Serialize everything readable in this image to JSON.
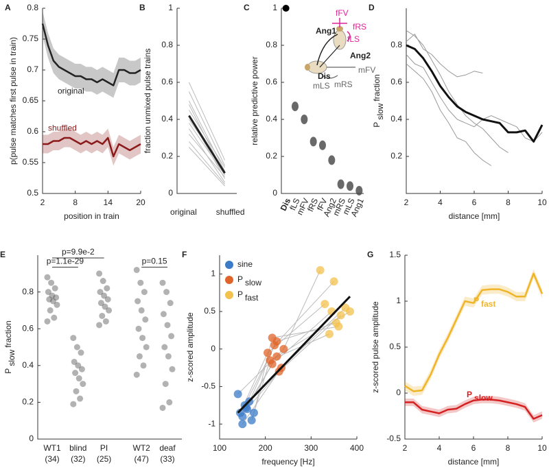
{
  "chart_data": [
    {
      "type": "line",
      "panel": "A",
      "xlabel": "position in train",
      "ylabel": "p(pulse matches first pulse in train)",
      "x": [
        2,
        3,
        4,
        5,
        6,
        7,
        8,
        9,
        10,
        11,
        12,
        13,
        14,
        15,
        16,
        17,
        18,
        19,
        20
      ],
      "xlim": [
        2,
        20
      ],
      "xticks": [
        2,
        8,
        14,
        20
      ],
      "ylim": [
        0.5,
        0.8
      ],
      "yticks": [
        0.5,
        0.55,
        0.6,
        0.65,
        0.7,
        0.75,
        0.8
      ],
      "series": [
        {
          "name": "original",
          "color": "#222222",
          "line_width": 2.5,
          "err": 0.02,
          "values": [
            0.775,
            0.74,
            0.715,
            0.705,
            0.7,
            0.695,
            0.69,
            0.69,
            0.685,
            0.685,
            0.68,
            0.685,
            0.68,
            0.675,
            0.7,
            0.7,
            0.695,
            0.695,
            0.7
          ]
        },
        {
          "name": "shuffled",
          "color": "#8b1a1a",
          "line_width": 2.5,
          "err": 0.015,
          "values": [
            0.58,
            0.58,
            0.585,
            0.585,
            0.59,
            0.59,
            0.585,
            0.58,
            0.585,
            0.58,
            0.585,
            0.58,
            0.59,
            0.56,
            0.58,
            0.575,
            0.57,
            0.575,
            0.58
          ]
        }
      ]
    },
    {
      "type": "paired",
      "panel": "B",
      "ylabel": "fraction unmixed pulse trains",
      "categories": [
        "original",
        "shuffled"
      ],
      "ylim": [
        0,
        1
      ],
      "yticks": [
        0,
        0.2,
        0.4,
        0.6,
        0.8,
        1
      ],
      "line_color": "#bbbbbb",
      "mean_color": "#222222",
      "lines": [
        [
          0.55,
          0.15
        ],
        [
          0.5,
          0.12
        ],
        [
          0.48,
          0.1
        ],
        [
          0.45,
          0.14
        ],
        [
          0.42,
          0.08
        ],
        [
          0.4,
          0.12
        ],
        [
          0.38,
          0.1
        ],
        [
          0.35,
          0.06
        ],
        [
          0.32,
          0.09
        ],
        [
          0.28,
          0.05
        ],
        [
          0.6,
          0.18
        ],
        [
          0.25,
          0.04
        ]
      ],
      "mean": [
        0.42,
        0.11
      ]
    },
    {
      "type": "dot",
      "panel": "C",
      "ylabel": "relative predictive power",
      "categories": [
        "Dis",
        "fLS",
        "mFV",
        "fRS",
        "fFV",
        "Ang2",
        "mRS",
        "mLS",
        "Ang1"
      ],
      "values": [
        1,
        0.47,
        0.4,
        0.28,
        0.26,
        0.18,
        0.05,
        0.04,
        0.015
      ],
      "ylim": [
        0,
        1
      ],
      "yticks": [
        0,
        0.2,
        0.4,
        0.6,
        0.8,
        1
      ],
      "color": "#444444",
      "first_color": "#000000",
      "inset_labels": [
        "fFV",
        "fRS",
        "fLS",
        "Ang1",
        "Ang2",
        "Dis",
        "mFV",
        "mLS",
        "mRS"
      ]
    },
    {
      "type": "line",
      "panel": "D",
      "xlabel": "distance [mm]",
      "ylabel": "P",
      "ylabel_sub": "slow",
      "ylabel_rest": "fraction",
      "x": [
        2,
        2.5,
        3,
        3.5,
        4,
        4.5,
        5,
        5.5,
        6,
        6.5,
        7,
        7.5,
        8,
        8.5,
        9,
        9.5,
        10
      ],
      "xlim": [
        2,
        10
      ],
      "xticks": [
        2,
        4,
        6,
        8,
        10
      ],
      "ylim": [
        0,
        1
      ],
      "yticks": [
        0.2,
        0.4,
        0.6,
        0.8
      ],
      "series": [
        {
          "color": "#999999",
          "line_width": 1,
          "values": [
            0.88,
            0.85,
            0.8,
            0.72,
            0.64,
            0.55,
            0.48,
            0.42,
            0.38,
            0.35,
            0.3,
            0.25,
            0.22,
            null,
            null,
            null,
            null
          ]
        },
        {
          "color": "#999999",
          "line_width": 1,
          "values": [
            0.82,
            0.86,
            0.78,
            0.75,
            0.7,
            0.66,
            0.63,
            0.64,
            0.66,
            0.65,
            null,
            null,
            null,
            null,
            null,
            null,
            null
          ]
        },
        {
          "color": "#999999",
          "line_width": 1,
          "values": [
            0.75,
            0.7,
            0.68,
            0.6,
            0.52,
            0.45,
            0.4,
            0.38,
            0.36,
            0.4,
            0.42,
            0.4,
            0.38,
            0.36,
            0.3,
            0.28,
            0.33
          ]
        },
        {
          "color": "#999999",
          "line_width": 1,
          "values": [
            0.7,
            0.66,
            0.62,
            0.55,
            0.45,
            0.38,
            0.3,
            0.28,
            0.22,
            0.18,
            0.15,
            null,
            null,
            null,
            null,
            null,
            null
          ]
        },
        {
          "color": "#111111",
          "line_width": 3,
          "values": [
            0.8,
            0.78,
            0.73,
            0.66,
            0.58,
            0.52,
            0.47,
            0.44,
            0.42,
            0.4,
            0.39,
            0.38,
            0.33,
            0.33,
            0.34,
            0.28,
            0.37
          ]
        }
      ]
    },
    {
      "type": "strip",
      "panel": "E",
      "ylabel": "P",
      "ylabel_sub": "slow",
      "ylabel_rest": "fraction",
      "categories": [
        "WT1",
        "blind",
        "PI",
        "WT2",
        "deaf"
      ],
      "n_labels": [
        "(34)",
        "(32)",
        "(25)",
        "(47)",
        "(33)"
      ],
      "annotations": [
        "p=1.1e-29",
        "p=9.9e-2",
        "p=0.15"
      ],
      "color": "#555555",
      "ylim": [
        0,
        1
      ],
      "yticks": [
        0,
        0.2,
        0.4,
        0.6,
        0.8
      ],
      "values": [
        [
          0.88,
          0.85,
          0.82,
          0.8,
          0.78,
          0.77,
          0.76,
          0.75,
          0.73,
          0.7,
          0.66,
          0.64
        ],
        [
          0.55,
          0.5,
          0.47,
          0.42,
          0.4,
          0.38,
          0.36,
          0.33,
          0.3,
          0.26,
          0.22,
          0.19
        ],
        [
          0.9,
          0.86,
          0.82,
          0.8,
          0.78,
          0.76,
          0.74,
          0.72,
          0.7,
          0.67,
          0.64,
          0.62
        ],
        [
          0.92,
          0.85,
          0.8,
          0.75,
          0.7,
          0.65,
          0.6,
          0.55,
          0.5,
          0.45,
          0.4,
          0.35
        ],
        [
          0.85,
          0.8,
          0.74,
          0.68,
          0.62,
          0.56,
          0.5,
          0.45,
          0.38,
          0.3,
          0.2,
          0.17
        ]
      ]
    },
    {
      "type": "scatter",
      "panel": "F",
      "xlabel": "frequency [Hz]",
      "ylabel": "z-scored amplitude",
      "xlim": [
        100,
        400
      ],
      "xticks": [
        100,
        200,
        300,
        400
      ],
      "ylim": [
        -1.2,
        1.25
      ],
      "yticks": [
        -1,
        -0.5,
        0,
        0.5,
        1
      ],
      "series": [
        {
          "name": "sine",
          "color": "#3b7bc8",
          "x": [
            145,
            150,
            155,
            160,
            165,
            170,
            150,
            140,
            175,
            158
          ],
          "values": [
            -0.85,
            -0.9,
            -0.75,
            -0.8,
            -0.7,
            -0.95,
            -1.0,
            -0.6,
            -0.85,
            -0.78
          ]
        },
        {
          "name": "P",
          "name_sub": "slow",
          "color": "#e0642a",
          "x": [
            205,
            215,
            225,
            230,
            220,
            210,
            235,
            240,
            215,
            225
          ],
          "values": [
            -0.05,
            -0.2,
            0.1,
            -0.3,
            0.05,
            -0.15,
            -0.25,
            0,
            0.15,
            -0.1
          ]
        },
        {
          "name": "P",
          "name_sub": "fast",
          "color": "#f3c14e",
          "x": [
            330,
            345,
            355,
            365,
            350,
            340,
            375,
            320,
            360,
            385
          ],
          "values": [
            0.6,
            0.5,
            0.35,
            0.45,
            0.9,
            0.2,
            0.55,
            1.05,
            0.3,
            0.5
          ]
        }
      ],
      "fit": {
        "x": [
          140,
          385
        ],
        "values": [
          -0.85,
          0.7
        ]
      }
    },
    {
      "type": "line",
      "panel": "G",
      "xlabel": "distance [mm]",
      "ylabel": "z-scored pulse amplitude",
      "x": [
        2,
        2.5,
        3,
        3.5,
        4,
        4.5,
        5,
        5.5,
        6,
        6.5,
        7,
        7.5,
        8,
        8.5,
        9,
        9.5,
        10
      ],
      "xlim": [
        2,
        10
      ],
      "xticks": [
        2,
        4,
        6,
        8,
        10
      ],
      "ylim": [
        -0.5,
        1.5
      ],
      "yticks": [
        -0.5,
        0,
        0.5,
        1,
        1.5
      ],
      "series": [
        {
          "name": "P",
          "name_sub": "fast",
          "color": "#f0b429",
          "line_width": 2.5,
          "err": 0.05,
          "values": [
            0.08,
            0.02,
            0.03,
            0.2,
            0.42,
            0.6,
            0.8,
            1.0,
            0.98,
            1.12,
            1.13,
            1.13,
            1.1,
            1.05,
            1.05,
            1.3,
            1.08
          ]
        },
        {
          "name": "P",
          "name_sub": "slow",
          "color": "#d42020",
          "line_width": 2.5,
          "err": 0.04,
          "values": [
            -0.1,
            -0.1,
            -0.18,
            -0.2,
            -0.22,
            -0.18,
            -0.17,
            -0.12,
            -0.08,
            -0.07,
            -0.07,
            -0.08,
            -0.1,
            -0.12,
            -0.15,
            -0.28,
            -0.24
          ]
        }
      ]
    }
  ]
}
